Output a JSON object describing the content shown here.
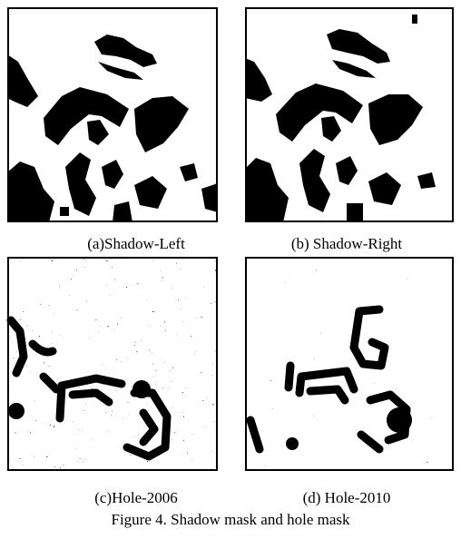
{
  "panels": [
    {
      "caption": "(a)Shadow-Left"
    },
    {
      "caption": "(b) Shadow-Right"
    },
    {
      "caption": "(c)Hole-2006"
    },
    {
      "caption": "(d) Hole-2010"
    }
  ],
  "figure_caption": "Figure 4. Shadow mask and hole mask"
}
